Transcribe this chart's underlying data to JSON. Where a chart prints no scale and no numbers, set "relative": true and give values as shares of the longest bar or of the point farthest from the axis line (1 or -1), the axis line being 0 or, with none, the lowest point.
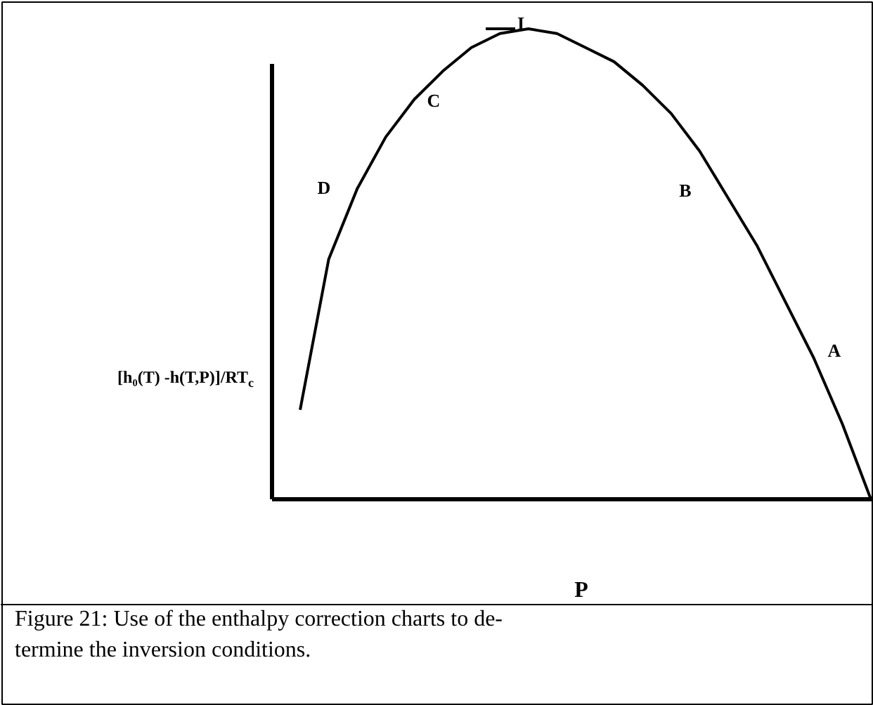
{
  "chart_data": {
    "type": "line",
    "relative": true,
    "categories": [
      null,
      null,
      null,
      null,
      null,
      null,
      null,
      null,
      null,
      null,
      null,
      null,
      null,
      null,
      null,
      null,
      null,
      null,
      null,
      null,
      null
    ],
    "values": [
      0.19,
      0.51,
      0.66,
      0.77,
      0.85,
      0.91,
      0.96,
      0.99,
      1.0,
      0.99,
      0.96,
      0.93,
      0.88,
      0.82,
      0.74,
      0.64,
      0.54,
      0.42,
      0.3,
      0.16,
      0.0
    ],
    "color": "#000000",
    "line_style": "solid",
    "xlabel": "P",
    "ylabel": "[h₀(T) -h(T,P)]/RT$_{c}$",
    "annotations": [
      "I",
      "C",
      "D",
      "B",
      "A",
      "Figure 21: Use of the enthalpy correction charts to de-\ntermine the inversion conditions."
    ]
  }
}
